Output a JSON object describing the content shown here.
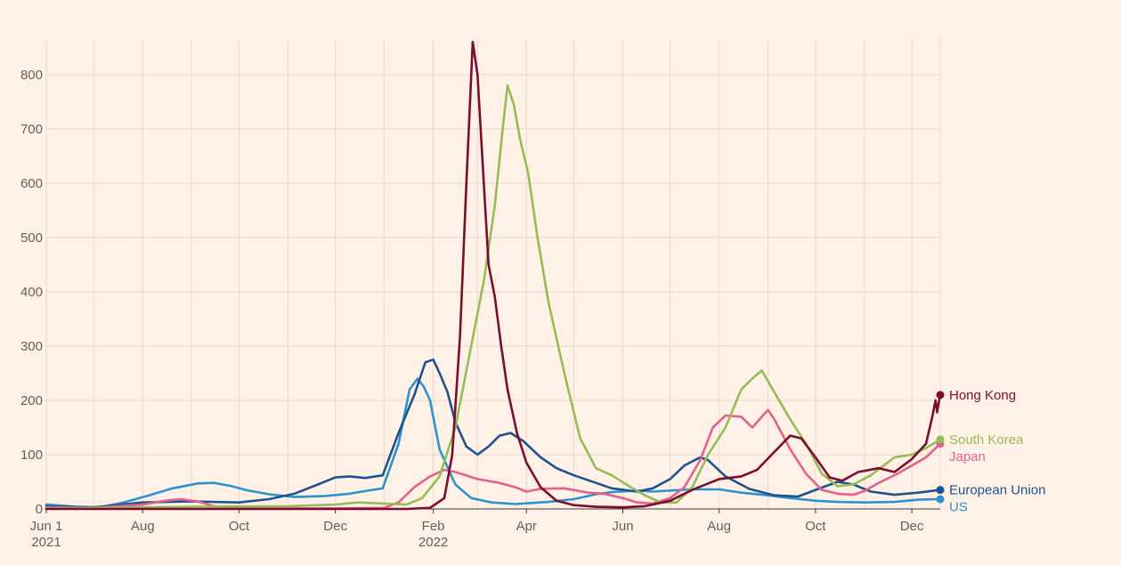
{
  "chart_data": {
    "type": "line",
    "title": "",
    "xlabel": "",
    "ylabel": "",
    "ylim": [
      0,
      880
    ],
    "y_ticks": [
      0,
      100,
      200,
      300,
      400,
      500,
      600,
      700,
      800
    ],
    "x_domain": [
      "2021-06-01",
      "2022-12-19"
    ],
    "x_ticks": [
      {
        "date": "2021-06-01",
        "label": "Jun 1",
        "sub": "2021"
      },
      {
        "date": "2021-08-01",
        "label": "Aug",
        "sub": ""
      },
      {
        "date": "2021-10-01",
        "label": "Oct",
        "sub": ""
      },
      {
        "date": "2021-12-01",
        "label": "Dec",
        "sub": ""
      },
      {
        "date": "2022-02-01",
        "label": "Feb",
        "sub": "2022"
      },
      {
        "date": "2022-04-01",
        "label": "Apr",
        "sub": ""
      },
      {
        "date": "2022-06-01",
        "label": "Jun",
        "sub": ""
      },
      {
        "date": "2022-08-01",
        "label": "Aug",
        "sub": ""
      },
      {
        "date": "2022-10-01",
        "label": "Oct",
        "sub": ""
      },
      {
        "date": "2022-12-01",
        "label": "Dec",
        "sub": ""
      }
    ],
    "grid": true,
    "series": [
      {
        "name": "US",
        "color": "#2e92cf",
        "points": [
          [
            "2021-06-01",
            8
          ],
          [
            "2021-06-20",
            4
          ],
          [
            "2021-07-05",
            3
          ],
          [
            "2021-07-20",
            12
          ],
          [
            "2021-08-05",
            25
          ],
          [
            "2021-08-20",
            38
          ],
          [
            "2021-09-05",
            47
          ],
          [
            "2021-09-15",
            48
          ],
          [
            "2021-09-25",
            43
          ],
          [
            "2021-10-05",
            35
          ],
          [
            "2021-10-20",
            27
          ],
          [
            "2021-11-05",
            22
          ],
          [
            "2021-11-25",
            24
          ],
          [
            "2021-12-10",
            28
          ],
          [
            "2021-12-20",
            33
          ],
          [
            "2021-12-31",
            38
          ],
          [
            "2022-01-10",
            120
          ],
          [
            "2022-01-17",
            220
          ],
          [
            "2022-01-22",
            240
          ],
          [
            "2022-01-26",
            225
          ],
          [
            "2022-01-30",
            200
          ],
          [
            "2022-02-05",
            110
          ],
          [
            "2022-02-15",
            45
          ],
          [
            "2022-02-25",
            20
          ],
          [
            "2022-03-10",
            12
          ],
          [
            "2022-03-25",
            9
          ],
          [
            "2022-04-15",
            13
          ],
          [
            "2022-05-01",
            18
          ],
          [
            "2022-05-15",
            27
          ],
          [
            "2022-05-25",
            31
          ],
          [
            "2022-06-10",
            34
          ],
          [
            "2022-06-20",
            32
          ],
          [
            "2022-07-01",
            34
          ],
          [
            "2022-07-15",
            36
          ],
          [
            "2022-08-01",
            36
          ],
          [
            "2022-08-15",
            30
          ],
          [
            "2022-09-01",
            25
          ],
          [
            "2022-09-15",
            20
          ],
          [
            "2022-10-01",
            15
          ],
          [
            "2022-10-15",
            13
          ],
          [
            "2022-11-01",
            12
          ],
          [
            "2022-11-20",
            13
          ],
          [
            "2022-12-05",
            17
          ],
          [
            "2022-12-19",
            18
          ]
        ]
      },
      {
        "name": "European Union",
        "color": "#1d5391",
        "points": [
          [
            "2021-06-01",
            5
          ],
          [
            "2021-07-01",
            3
          ],
          [
            "2021-08-01",
            12
          ],
          [
            "2021-09-01",
            14
          ],
          [
            "2021-10-01",
            12
          ],
          [
            "2021-10-20",
            18
          ],
          [
            "2021-11-05",
            28
          ],
          [
            "2021-11-20",
            45
          ],
          [
            "2021-12-01",
            58
          ],
          [
            "2021-12-10",
            60
          ],
          [
            "2021-12-20",
            57
          ],
          [
            "2021-12-31",
            62
          ],
          [
            "2022-01-10",
            140
          ],
          [
            "2022-01-20",
            210
          ],
          [
            "2022-01-27",
            270
          ],
          [
            "2022-02-01",
            275
          ],
          [
            "2022-02-05",
            250
          ],
          [
            "2022-02-10",
            215
          ],
          [
            "2022-02-15",
            160
          ],
          [
            "2022-02-22",
            115
          ],
          [
            "2022-03-01",
            100
          ],
          [
            "2022-03-08",
            115
          ],
          [
            "2022-03-15",
            135
          ],
          [
            "2022-03-22",
            140
          ],
          [
            "2022-03-30",
            125
          ],
          [
            "2022-04-10",
            95
          ],
          [
            "2022-04-20",
            75
          ],
          [
            "2022-05-01",
            62
          ],
          [
            "2022-05-15",
            48
          ],
          [
            "2022-05-25",
            38
          ],
          [
            "2022-06-10",
            32
          ],
          [
            "2022-06-20",
            38
          ],
          [
            "2022-07-01",
            55
          ],
          [
            "2022-07-10",
            80
          ],
          [
            "2022-07-20",
            95
          ],
          [
            "2022-07-25",
            90
          ],
          [
            "2022-08-05",
            60
          ],
          [
            "2022-08-20",
            37
          ],
          [
            "2022-09-05",
            25
          ],
          [
            "2022-09-20",
            23
          ],
          [
            "2022-10-01",
            35
          ],
          [
            "2022-10-15",
            50
          ],
          [
            "2022-10-25",
            45
          ],
          [
            "2022-11-05",
            32
          ],
          [
            "2022-11-20",
            26
          ],
          [
            "2022-12-05",
            30
          ],
          [
            "2022-12-19",
            35
          ]
        ]
      },
      {
        "name": "Japan",
        "color": "#e2628f",
        "points": [
          [
            "2021-06-01",
            3
          ],
          [
            "2021-07-01",
            2
          ],
          [
            "2021-08-01",
            8
          ],
          [
            "2021-08-15",
            15
          ],
          [
            "2021-08-25",
            18
          ],
          [
            "2021-09-05",
            14
          ],
          [
            "2021-09-15",
            5
          ],
          [
            "2021-10-01",
            1
          ],
          [
            "2021-11-01",
            1
          ],
          [
            "2021-12-01",
            1
          ],
          [
            "2022-01-01",
            2
          ],
          [
            "2022-01-10",
            12
          ],
          [
            "2022-01-20",
            40
          ],
          [
            "2022-01-30",
            60
          ],
          [
            "2022-02-08",
            72
          ],
          [
            "2022-02-15",
            68
          ],
          [
            "2022-03-01",
            55
          ],
          [
            "2022-03-15",
            48
          ],
          [
            "2022-03-25",
            40
          ],
          [
            "2022-04-01",
            32
          ],
          [
            "2022-04-10",
            37
          ],
          [
            "2022-04-25",
            38
          ],
          [
            "2022-05-10",
            30
          ],
          [
            "2022-05-20",
            28
          ],
          [
            "2022-06-01",
            20
          ],
          [
            "2022-06-10",
            12
          ],
          [
            "2022-06-20",
            10
          ],
          [
            "2022-07-01",
            20
          ],
          [
            "2022-07-10",
            40
          ],
          [
            "2022-07-20",
            90
          ],
          [
            "2022-07-28",
            150
          ],
          [
            "2022-08-05",
            172
          ],
          [
            "2022-08-15",
            170
          ],
          [
            "2022-08-22",
            150
          ],
          [
            "2022-08-28",
            170
          ],
          [
            "2022-09-01",
            182
          ],
          [
            "2022-09-05",
            165
          ],
          [
            "2022-09-15",
            110
          ],
          [
            "2022-09-25",
            65
          ],
          [
            "2022-10-05",
            35
          ],
          [
            "2022-10-15",
            28
          ],
          [
            "2022-10-25",
            26
          ],
          [
            "2022-11-01",
            33
          ],
          [
            "2022-11-10",
            48
          ],
          [
            "2022-11-20",
            62
          ],
          [
            "2022-12-01",
            80
          ],
          [
            "2022-12-10",
            95
          ],
          [
            "2022-12-19",
            120
          ]
        ]
      },
      {
        "name": "South Korea",
        "color": "#96bc56",
        "points": [
          [
            "2021-06-01",
            1
          ],
          [
            "2021-09-01",
            4
          ],
          [
            "2021-11-01",
            5
          ],
          [
            "2021-12-01",
            8
          ],
          [
            "2021-12-15",
            12
          ],
          [
            "2021-12-31",
            10
          ],
          [
            "2022-01-15",
            8
          ],
          [
            "2022-01-25",
            20
          ],
          [
            "2022-02-05",
            60
          ],
          [
            "2022-02-15",
            150
          ],
          [
            "2022-02-25",
            300
          ],
          [
            "2022-03-05",
            420
          ],
          [
            "2022-03-12",
            560
          ],
          [
            "2022-03-17",
            700
          ],
          [
            "2022-03-20",
            780
          ],
          [
            "2022-03-24",
            745
          ],
          [
            "2022-03-28",
            680
          ],
          [
            "2022-04-02",
            620
          ],
          [
            "2022-04-08",
            500
          ],
          [
            "2022-04-15",
            380
          ],
          [
            "2022-04-25",
            250
          ],
          [
            "2022-05-05",
            130
          ],
          [
            "2022-05-15",
            75
          ],
          [
            "2022-05-25",
            62
          ],
          [
            "2022-06-05",
            42
          ],
          [
            "2022-06-15",
            25
          ],
          [
            "2022-06-25",
            12
          ],
          [
            "2022-07-05",
            12
          ],
          [
            "2022-07-15",
            40
          ],
          [
            "2022-07-25",
            100
          ],
          [
            "2022-08-05",
            150
          ],
          [
            "2022-08-15",
            220
          ],
          [
            "2022-08-22",
            240
          ],
          [
            "2022-08-28",
            255
          ],
          [
            "2022-09-05",
            215
          ],
          [
            "2022-09-15",
            165
          ],
          [
            "2022-09-25",
            120
          ],
          [
            "2022-10-05",
            65
          ],
          [
            "2022-10-15",
            42
          ],
          [
            "2022-10-25",
            45
          ],
          [
            "2022-11-05",
            62
          ],
          [
            "2022-11-20",
            95
          ],
          [
            "2022-12-01",
            100
          ],
          [
            "2022-12-10",
            112
          ],
          [
            "2022-12-19",
            128
          ]
        ]
      },
      {
        "name": "Hong Kong",
        "color": "#7a0d30",
        "points": [
          [
            "2021-06-01",
            0
          ],
          [
            "2022-01-15",
            0
          ],
          [
            "2022-01-30",
            2
          ],
          [
            "2022-02-08",
            20
          ],
          [
            "2022-02-13",
            100
          ],
          [
            "2022-02-18",
            320
          ],
          [
            "2022-02-22",
            600
          ],
          [
            "2022-02-26",
            860
          ],
          [
            "2022-03-01",
            800
          ],
          [
            "2022-03-04",
            650
          ],
          [
            "2022-03-08",
            450
          ],
          [
            "2022-03-12",
            390
          ],
          [
            "2022-03-16",
            300
          ],
          [
            "2022-03-20",
            220
          ],
          [
            "2022-03-26",
            140
          ],
          [
            "2022-04-01",
            85
          ],
          [
            "2022-04-10",
            40
          ],
          [
            "2022-04-20",
            15
          ],
          [
            "2022-05-01",
            7
          ],
          [
            "2022-05-15",
            4
          ],
          [
            "2022-06-01",
            3
          ],
          [
            "2022-06-15",
            5
          ],
          [
            "2022-07-01",
            15
          ],
          [
            "2022-07-15",
            35
          ],
          [
            "2022-08-01",
            55
          ],
          [
            "2022-08-15",
            60
          ],
          [
            "2022-08-25",
            72
          ],
          [
            "2022-09-05",
            105
          ],
          [
            "2022-09-15",
            135
          ],
          [
            "2022-09-22",
            130
          ],
          [
            "2022-10-01",
            95
          ],
          [
            "2022-10-10",
            58
          ],
          [
            "2022-10-18",
            52
          ],
          [
            "2022-10-28",
            68
          ],
          [
            "2022-11-10",
            75
          ],
          [
            "2022-11-20",
            68
          ],
          [
            "2022-12-01",
            92
          ],
          [
            "2022-12-10",
            120
          ],
          [
            "2022-12-14",
            170
          ],
          [
            "2022-12-16",
            200
          ],
          [
            "2022-12-17",
            178
          ],
          [
            "2022-12-18",
            195
          ],
          [
            "2022-12-19",
            210
          ]
        ]
      }
    ]
  }
}
